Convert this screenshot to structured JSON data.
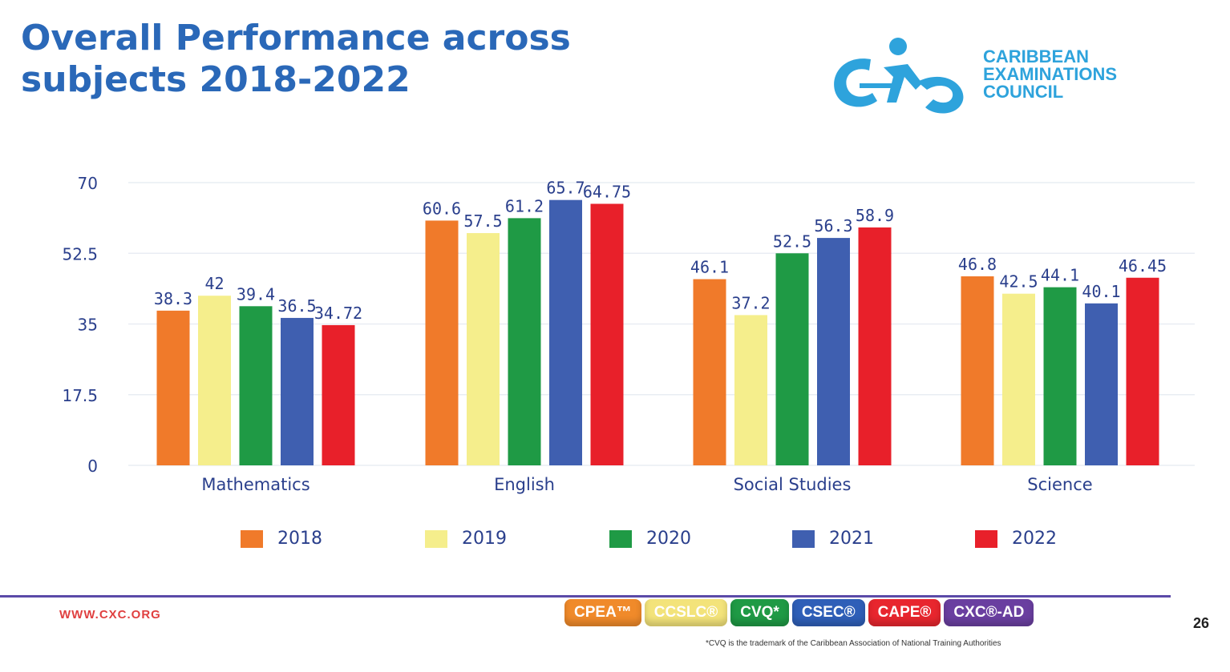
{
  "header": {
    "title_line1": "Overall Performance across",
    "title_line2": "subjects 2018-2022"
  },
  "logo": {
    "line1": "CARIBBEAN",
    "line2": "EXAMINATIONS",
    "line3": "COUNCIL",
    "mark_text": "CXC"
  },
  "chart_data": {
    "type": "bar",
    "title": "Overall Performance across subjects 2018-2022",
    "categories": [
      "Mathematics",
      "English",
      "Social Studies",
      "Science"
    ],
    "series": [
      {
        "name": "2018",
        "color": "#f07a2a",
        "values": [
          38.3,
          60.6,
          46.1,
          46.8
        ],
        "labels": [
          "38.3",
          "60.6",
          "46.1",
          "46.8"
        ]
      },
      {
        "name": "2019",
        "color": "#f5ee8c",
        "values": [
          42,
          57.5,
          37.2,
          42.5
        ],
        "labels": [
          "42",
          "57.5",
          "37.2",
          "42.5"
        ]
      },
      {
        "name": "2020",
        "color": "#1f9a45",
        "values": [
          39.4,
          61.2,
          52.5,
          44.1
        ],
        "labels": [
          "39.4",
          "61.2",
          "52.5",
          "44.1"
        ]
      },
      {
        "name": "2021",
        "color": "#3f5fb0",
        "values": [
          36.5,
          65.7,
          56.3,
          40.1
        ],
        "labels": [
          "36.5",
          "65.7",
          "56.3",
          "40.1"
        ]
      },
      {
        "name": "2022",
        "color": "#e8202a",
        "values": [
          34.72,
          64.75,
          58.9,
          46.45
        ],
        "labels": [
          "34.72",
          "64.75",
          "58.9",
          "46.45"
        ]
      }
    ],
    "ylim": [
      0,
      70
    ],
    "yticks": [
      "0",
      "17.5",
      "35",
      "52.5",
      "70"
    ],
    "grid": true,
    "legend": "bottom"
  },
  "footer": {
    "website": "WWW.CXC.ORG",
    "page_number": "26",
    "footnote": "*CVQ is the trademark of the Caribbean Association of National Training Authorities",
    "brands": [
      {
        "label": "CPEA™",
        "color": "#f08a2a"
      },
      {
        "label": "CCSLC®",
        "color": "#f3e37a"
      },
      {
        "label": "CVQ*",
        "color": "#1f9a45"
      },
      {
        "label": "CSEC®",
        "color": "#2f5fb8"
      },
      {
        "label": "CAPE®",
        "color": "#e8262e"
      },
      {
        "label": "CXC®-AD",
        "color": "#6a3fa0"
      }
    ]
  }
}
